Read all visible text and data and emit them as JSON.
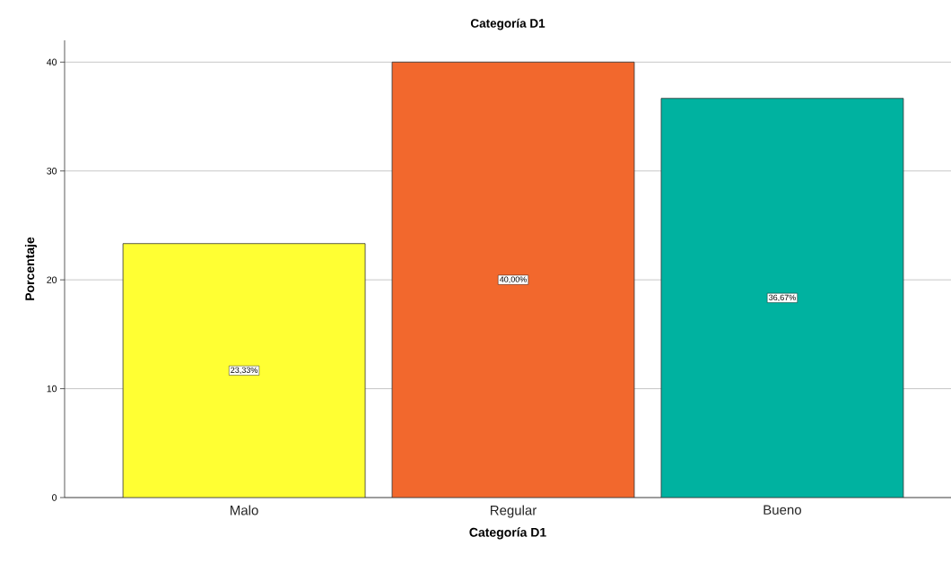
{
  "chart_data": {
    "type": "bar",
    "title": "Categoría D1",
    "xlabel": "Categoría D1",
    "ylabel": "Porcentaje",
    "categories": [
      "Malo",
      "Regular",
      "Bueno"
    ],
    "values": [
      23.33,
      40.0,
      36.67
    ],
    "colors": [
      "#ffff33",
      "#f2682d",
      "#00b2a0"
    ],
    "value_labels": [
      "23,33%",
      "40,00%",
      "36,67%"
    ],
    "ylim": [
      0,
      42
    ],
    "yticks": [
      0,
      10,
      20,
      30,
      40
    ],
    "grid": "y"
  }
}
